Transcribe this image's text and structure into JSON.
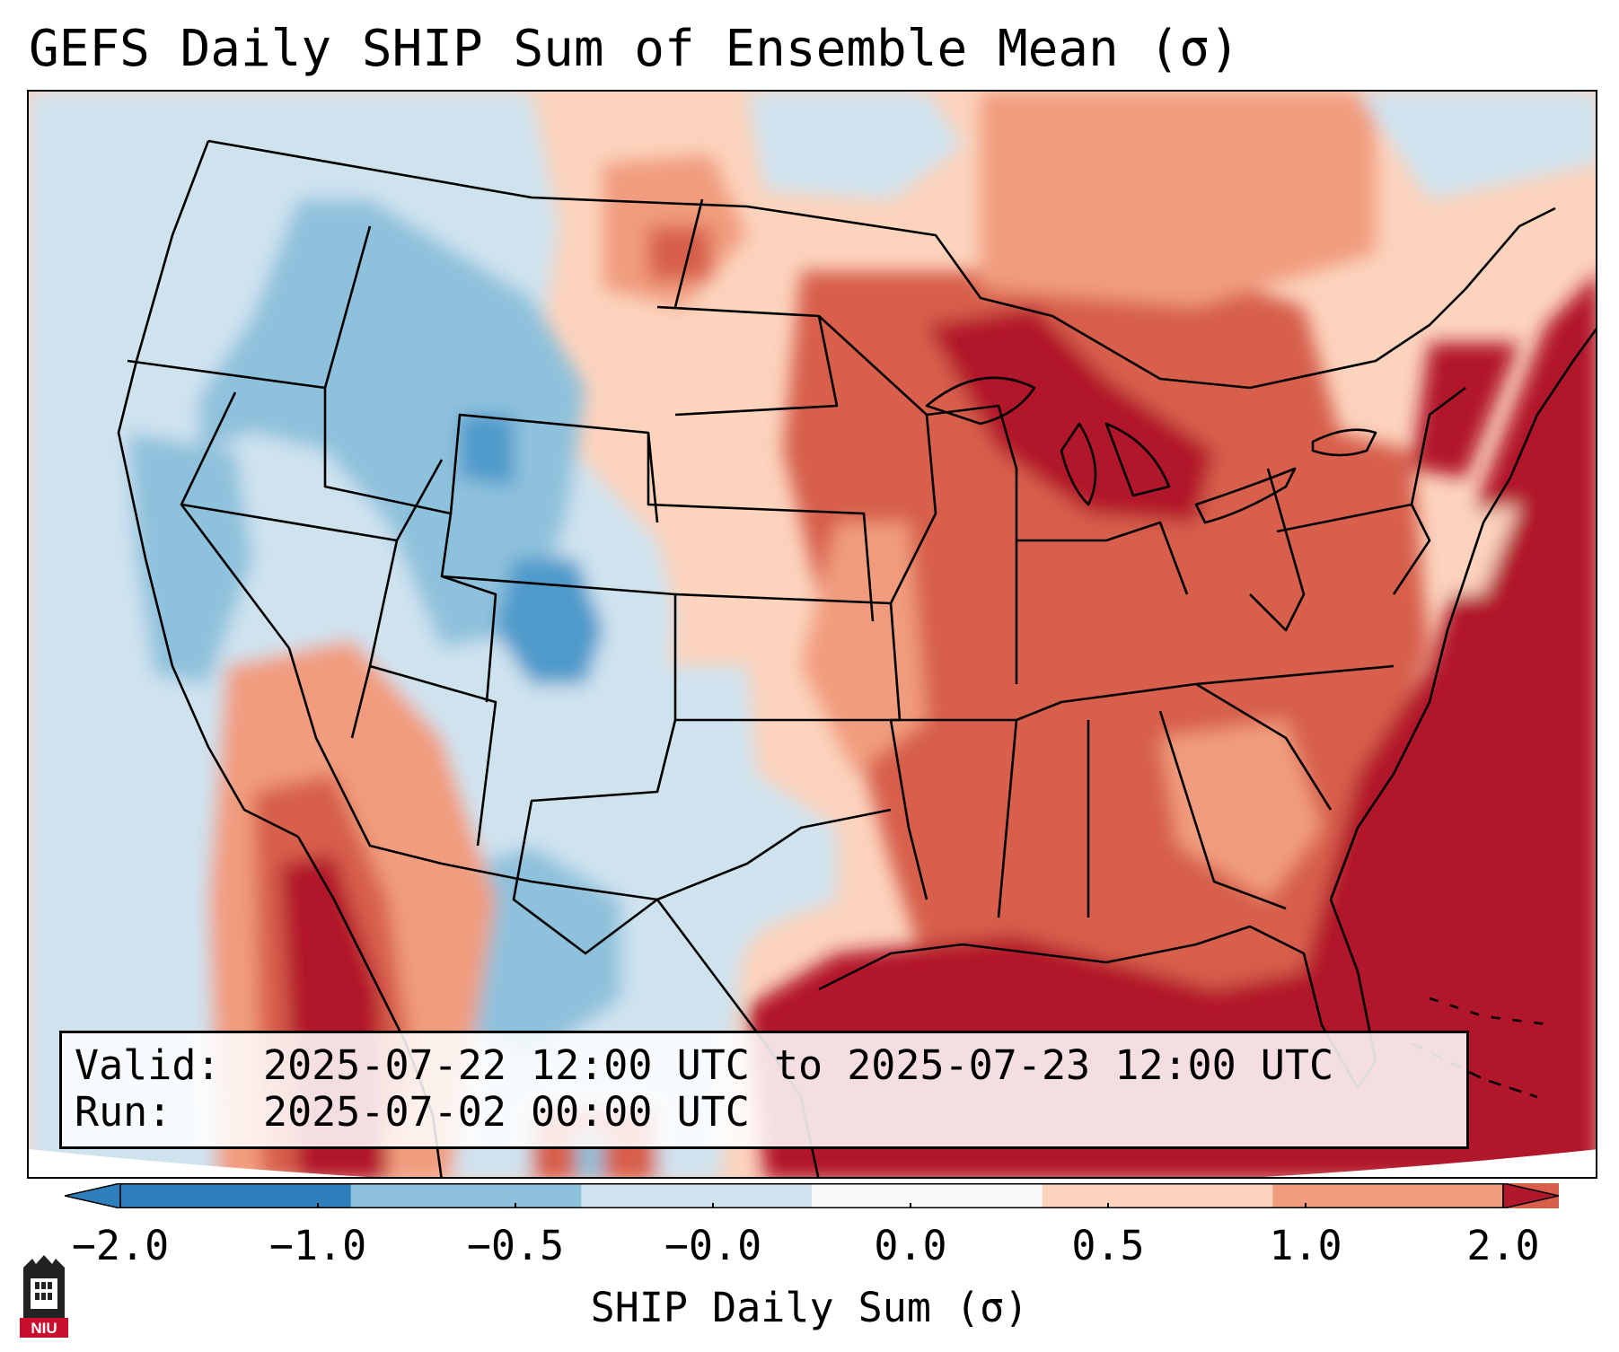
{
  "title": "GEFS Daily SHIP Sum of Ensemble Mean (σ)",
  "info": {
    "valid_label": "Valid:",
    "valid_value": "2025-07-22 12:00 UTC to 2025-07-23 12:00 UTC",
    "run_label": "Run:",
    "run_value": "2025-07-02 00:00 UTC"
  },
  "colorbar": {
    "label": "SHIP Daily Sum (σ)",
    "ticks": [
      "−2.0",
      "−1.0",
      "−0.5",
      "−0.0",
      "0.0",
      "0.5",
      "1.0",
      "2.0"
    ],
    "colors": [
      "#2f7fbc",
      "#8ec1dc",
      "#cfe3ef",
      "#f8f8f8",
      "#fcd3bd",
      "#f19c7e",
      "#d75f4c",
      "#b2182b"
    ],
    "extend": "both"
  },
  "logo": {
    "text": "NIU",
    "color": "#c8102e"
  }
}
